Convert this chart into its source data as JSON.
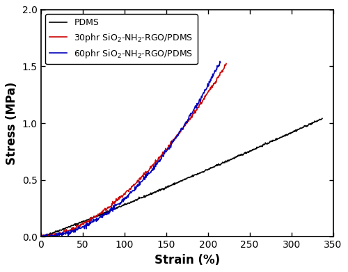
{
  "title": "",
  "xlabel": "Strain (%)",
  "ylabel": "Stress (MPa)",
  "xlim": [
    0,
    350
  ],
  "ylim": [
    0,
    2.0
  ],
  "xticks": [
    0,
    50,
    100,
    150,
    200,
    250,
    300,
    350
  ],
  "yticks": [
    0.0,
    0.5,
    1.0,
    1.5,
    2.0
  ],
  "legend": [
    {
      "label": "PDMS",
      "color": "#000000"
    },
    {
      "label": "30phr SiO$_2$-NH$_2$-RGO/PDMS",
      "color": "#cc0000"
    },
    {
      "label": "60phr SiO$_2$-NH$_2$-RGO/PDMS",
      "color": "#0000bb"
    }
  ],
  "black_strain_end": 337,
  "black_stress_end": 1.04,
  "black_power": 1.08,
  "black_noise": 0.004,
  "black_n": 600,
  "red_strain_end": 222,
  "red_stress_end": 1.52,
  "red_power": 1.75,
  "red_noise": 0.008,
  "red_n": 400,
  "blue_strain_end": 215,
  "blue_stress_end": 1.54,
  "blue_power": 2.0,
  "blue_noise": 0.01,
  "blue_n": 400,
  "linewidth": 1.2,
  "figsize": [
    5.0,
    3.91
  ],
  "dpi": 100,
  "font_size_label": 12,
  "font_size_tick": 10,
  "font_size_legend": 9,
  "background_color": "#ffffff",
  "spine_color": "#000000"
}
